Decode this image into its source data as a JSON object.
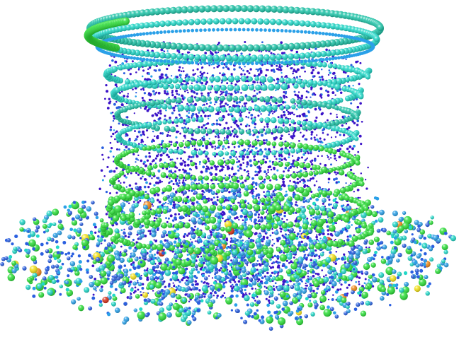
{
  "scene": {
    "subject": "particle-vortex",
    "background_color": "#ffffff",
    "palette": {
      "violet": "#3c14c8",
      "blue": "#2a5fe0",
      "sky": "#2aa0e8",
      "cyan": "#22d8c8",
      "teal": "#1fc4a8",
      "green": "#2ee03a",
      "yellow": "#f4e21a",
      "orange": "#f08a1a",
      "red": "#d83018"
    }
  }
}
